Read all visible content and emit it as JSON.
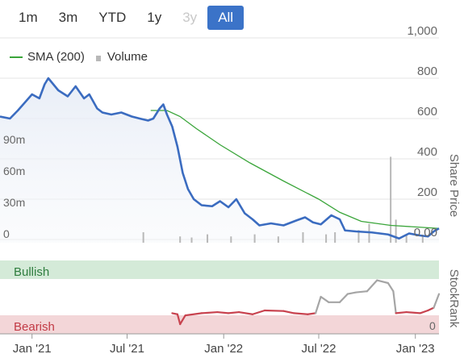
{
  "range_selector": {
    "buttons": [
      {
        "label": "1m",
        "state": "normal"
      },
      {
        "label": "3m",
        "state": "normal"
      },
      {
        "label": "YTD",
        "state": "normal"
      },
      {
        "label": "1y",
        "state": "normal"
      },
      {
        "label": "3y",
        "state": "disabled"
      },
      {
        "label": "All",
        "state": "active"
      }
    ],
    "accent_color": "#3b73c8"
  },
  "legend": {
    "sma_label": "SMA (200)",
    "volume_label": "Volume"
  },
  "axes": {
    "price_axis_title": "Share Price",
    "price_ticks": [
      "1,000",
      "800",
      "600",
      "400",
      "200",
      "0.00"
    ],
    "volume_ticks": [
      "90m",
      "60m",
      "30m",
      "0"
    ],
    "stockrank_axis_title": "StockRank",
    "stockrank_ticks": [
      "0"
    ],
    "x_ticks": [
      "Jan '21",
      "Jul '21",
      "Jan '22",
      "Jul '22",
      "Jan '23"
    ]
  },
  "bands": {
    "bullish_label": "Bullish",
    "bearish_label": "Bearish",
    "bullish_color": "#d4ead8",
    "bearish_color": "#f3d6d8"
  },
  "chart_data": {
    "type": "line",
    "price_ylim": [
      0,
      1000
    ],
    "volume_ylim": [
      0,
      120
    ],
    "stockrank_ylim": [
      0,
      100
    ],
    "x_range": [
      "2020-11-01",
      "2023-02-15"
    ],
    "grid": true,
    "legend_position": "top-left",
    "series": [
      {
        "name": "Share Price",
        "color": "#3b6cc0",
        "points": [
          [
            "2020-11-01",
            610
          ],
          [
            "2020-11-20",
            600
          ],
          [
            "2020-12-05",
            640
          ],
          [
            "2021-01-01",
            720
          ],
          [
            "2021-01-15",
            700
          ],
          [
            "2021-01-25",
            770
          ],
          [
            "2021-02-01",
            800
          ],
          [
            "2021-02-20",
            740
          ],
          [
            "2021-03-10",
            710
          ],
          [
            "2021-03-25",
            760
          ],
          [
            "2021-04-10",
            700
          ],
          [
            "2021-04-20",
            720
          ],
          [
            "2021-05-05",
            650
          ],
          [
            "2021-05-15",
            630
          ],
          [
            "2021-06-01",
            620
          ],
          [
            "2021-06-20",
            630
          ],
          [
            "2021-07-10",
            610
          ],
          [
            "2021-07-25",
            600
          ],
          [
            "2021-08-10",
            590
          ],
          [
            "2021-08-20",
            600
          ],
          [
            "2021-09-01",
            650
          ],
          [
            "2021-09-08",
            670
          ],
          [
            "2021-09-15",
            620
          ],
          [
            "2021-09-25",
            560
          ],
          [
            "2021-10-05",
            460
          ],
          [
            "2021-10-15",
            330
          ],
          [
            "2021-10-25",
            250
          ],
          [
            "2021-11-05",
            200
          ],
          [
            "2021-11-20",
            170
          ],
          [
            "2021-12-10",
            165
          ],
          [
            "2021-12-25",
            190
          ],
          [
            "2022-01-10",
            160
          ],
          [
            "2022-01-25",
            200
          ],
          [
            "2022-02-10",
            130
          ],
          [
            "2022-02-25",
            100
          ],
          [
            "2022-03-10",
            70
          ],
          [
            "2022-04-01",
            80
          ],
          [
            "2022-04-25",
            70
          ],
          [
            "2022-05-20",
            95
          ],
          [
            "2022-06-05",
            110
          ],
          [
            "2022-06-20",
            85
          ],
          [
            "2022-07-05",
            75
          ],
          [
            "2022-07-25",
            120
          ],
          [
            "2022-08-10",
            100
          ],
          [
            "2022-08-20",
            45
          ],
          [
            "2022-09-10",
            40
          ],
          [
            "2022-10-10",
            35
          ],
          [
            "2022-11-10",
            25
          ],
          [
            "2022-12-01",
            5
          ],
          [
            "2022-12-20",
            30
          ],
          [
            "2023-01-10",
            20
          ],
          [
            "2023-01-25",
            15
          ],
          [
            "2023-02-05",
            40
          ],
          [
            "2023-02-15",
            55
          ]
        ]
      },
      {
        "name": "SMA (200)",
        "color": "#3aa53a",
        "points": [
          [
            "2021-08-15",
            640
          ],
          [
            "2021-09-15",
            640
          ],
          [
            "2021-10-10",
            610
          ],
          [
            "2021-11-10",
            550
          ],
          [
            "2021-12-25",
            470
          ],
          [
            "2022-02-20",
            380
          ],
          [
            "2022-04-25",
            290
          ],
          [
            "2022-07-01",
            200
          ],
          [
            "2022-08-10",
            135
          ],
          [
            "2022-09-20",
            90
          ],
          [
            "2022-11-15",
            70
          ],
          [
            "2023-02-15",
            55
          ]
        ]
      },
      {
        "name": "Volume",
        "color": "#b8b8b8",
        "points": [
          [
            "2021-08-01",
            10
          ],
          [
            "2021-10-10",
            6
          ],
          [
            "2021-11-01",
            5
          ],
          [
            "2021-12-01",
            8
          ],
          [
            "2022-01-15",
            6
          ],
          [
            "2022-03-01",
            8
          ],
          [
            "2022-04-15",
            6
          ],
          [
            "2022-06-01",
            10
          ],
          [
            "2022-07-15",
            8
          ],
          [
            "2022-08-01",
            10
          ],
          [
            "2022-09-15",
            12
          ],
          [
            "2022-10-05",
            18
          ],
          [
            "2022-11-15",
            82
          ],
          [
            "2022-11-25",
            22
          ],
          [
            "2022-12-15",
            8
          ],
          [
            "2023-01-15",
            6
          ]
        ]
      },
      {
        "name": "StockRank",
        "points": [
          [
            "2021-09-25",
            20
          ],
          [
            "2021-10-05",
            18
          ],
          [
            "2021-10-10",
            0
          ],
          [
            "2021-10-20",
            16
          ],
          [
            "2021-11-20",
            20
          ],
          [
            "2021-12-20",
            22
          ],
          [
            "2022-01-10",
            20
          ],
          [
            "2022-01-30",
            22
          ],
          [
            "2022-02-25",
            18
          ],
          [
            "2022-03-20",
            25
          ],
          [
            "2022-04-25",
            24
          ],
          [
            "2022-05-15",
            20
          ],
          [
            "2022-06-10",
            18
          ],
          [
            "2022-06-25",
            20
          ],
          [
            "2022-07-05",
            50
          ],
          [
            "2022-07-20",
            40
          ],
          [
            "2022-08-10",
            40
          ],
          [
            "2022-08-25",
            55
          ],
          [
            "2022-09-10",
            58
          ],
          [
            "2022-10-01",
            60
          ],
          [
            "2022-10-20",
            80
          ],
          [
            "2022-11-10",
            75
          ],
          [
            "2022-11-20",
            60
          ],
          [
            "2022-11-25",
            20
          ],
          [
            "2022-12-15",
            22
          ],
          [
            "2023-01-10",
            20
          ],
          [
            "2023-01-25",
            25
          ],
          [
            "2023-02-05",
            30
          ],
          [
            "2023-02-15",
            55
          ]
        ]
      }
    ]
  }
}
